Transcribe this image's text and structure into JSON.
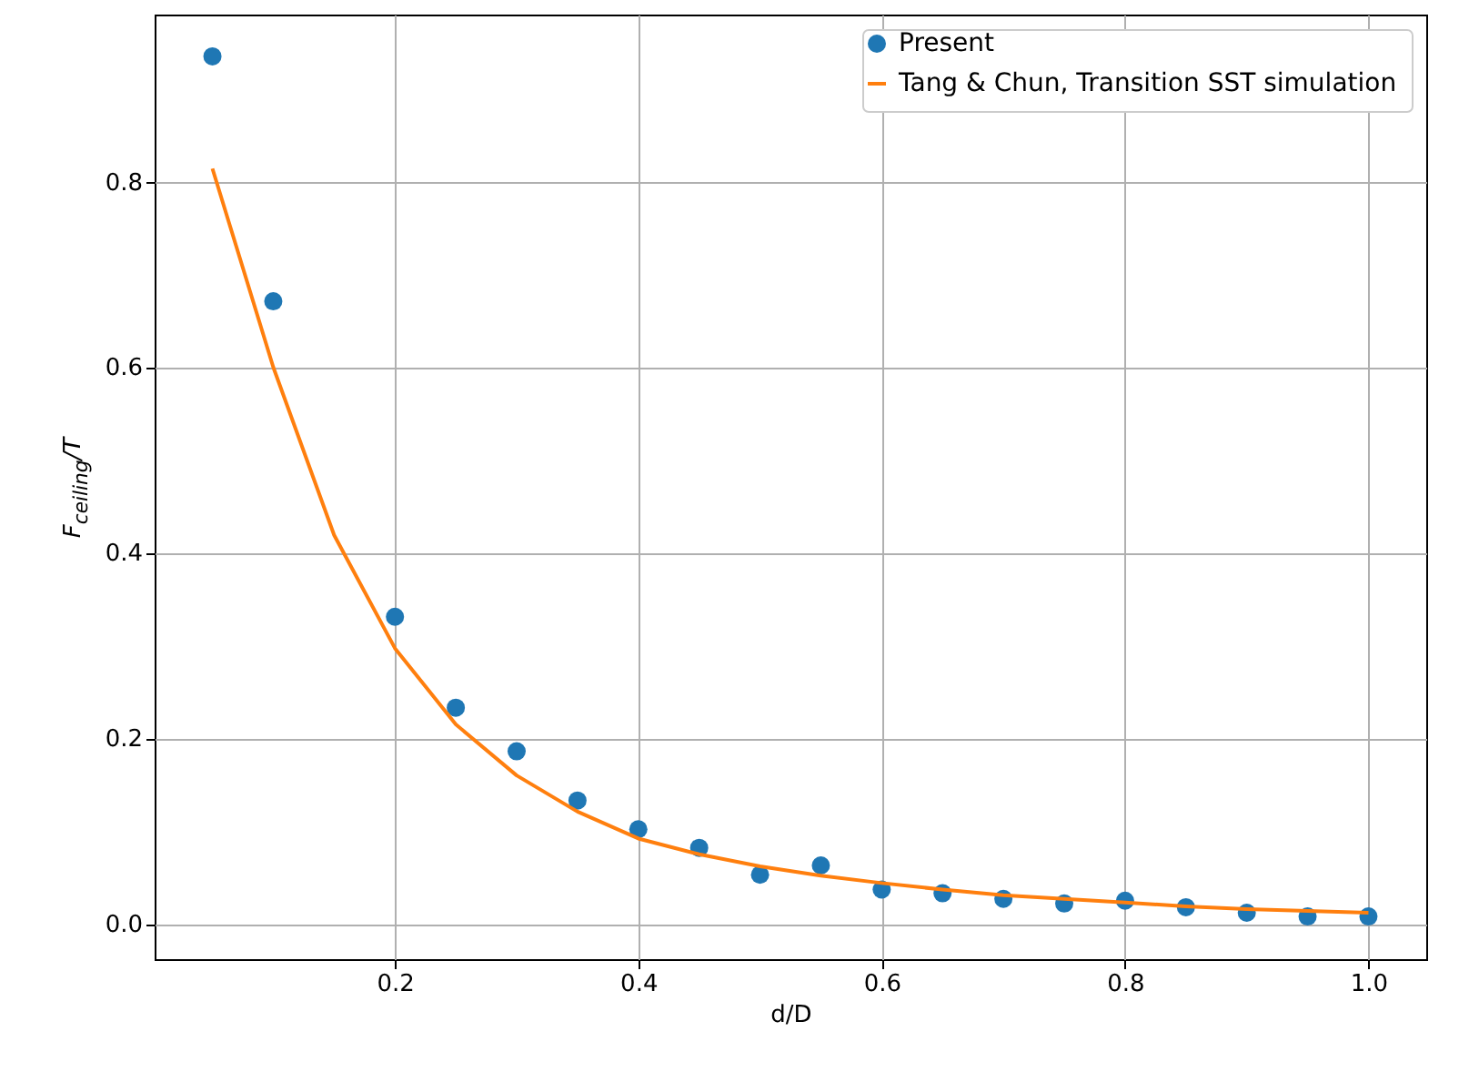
{
  "chart_data": {
    "type": "scatter",
    "xlabel": "d/D",
    "ylabel": "F$_{ceiling}$/T",
    "x": [
      0.05,
      0.1,
      0.2,
      0.25,
      0.3,
      0.35,
      0.4,
      0.45,
      0.5,
      0.55,
      0.6,
      0.65,
      0.7,
      0.75,
      0.8,
      0.85,
      0.9,
      0.95,
      1.0
    ],
    "series": [
      {
        "name": "Present",
        "type": "scatter",
        "color": "#1f77b4",
        "marker": "circle",
        "values": [
          0.935,
          0.671,
          0.331,
          0.233,
          0.186,
          0.133,
          0.102,
          0.082,
          0.053,
          0.063,
          0.037,
          0.033,
          0.027,
          0.022,
          0.025,
          0.018,
          0.012,
          0.008,
          0.008
        ]
      },
      {
        "name": "Tang & Chun, Transition SST simulation",
        "type": "line",
        "color": "#ff7f0e",
        "line_style": "solid",
        "x": [
          0.05,
          0.1,
          0.15,
          0.2,
          0.25,
          0.3,
          0.35,
          0.4,
          0.45,
          0.5,
          0.55,
          0.6,
          0.65,
          0.7,
          0.75,
          0.8,
          0.85,
          0.9,
          0.95,
          1.0
        ],
        "values": [
          0.814,
          0.6,
          0.419,
          0.297,
          0.215,
          0.16,
          0.121,
          0.092,
          0.075,
          0.062,
          0.052,
          0.044,
          0.037,
          0.031,
          0.027,
          0.023,
          0.019,
          0.016,
          0.014,
          0.012
        ]
      }
    ],
    "xlim": [
      0.0025,
      1.0475
    ],
    "xticks": [
      0.2,
      0.4,
      0.6,
      0.8,
      {
        "value": 1,
        "label": "1.0"
      }
    ],
    "ylim": [
      -0.038,
      0.98
    ],
    "yticks": [
      {
        "value": 0,
        "label": "0.0"
      },
      0.2,
      0.4,
      0.6,
      0.8
    ],
    "grid": true,
    "legend": "top right"
  }
}
